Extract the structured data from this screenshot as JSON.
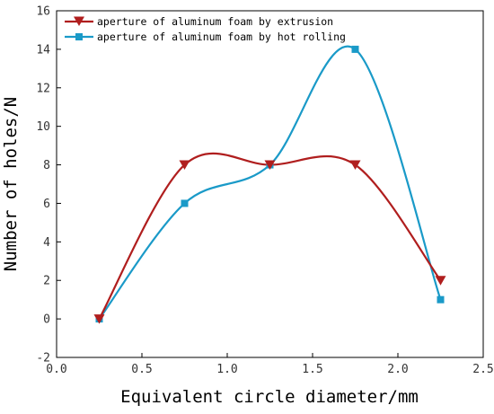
{
  "chart_data": {
    "type": "line",
    "title": "",
    "xlabel": "Equivalent circle diameter/mm",
    "ylabel": "Number of holes/N",
    "xlim": [
      0.0,
      2.5
    ],
    "ylim": [
      -2,
      16
    ],
    "x_ticks": [
      "0.0",
      "0.5",
      "1.0",
      "1.5",
      "2.0",
      "2.5"
    ],
    "y_ticks": [
      "-2",
      "0",
      "2",
      "4",
      "6",
      "8",
      "10",
      "12",
      "14",
      "16"
    ],
    "grid": false,
    "legend_position": "top-left",
    "smooth": true,
    "x": [
      0.25,
      0.75,
      1.25,
      1.75,
      2.25
    ],
    "series": [
      {
        "name": "aperture of aluminum foam by extrusion",
        "values": [
          0,
          8,
          8,
          8,
          2
        ],
        "color": "#b01e1e",
        "marker": "triangle-down"
      },
      {
        "name": "aperture of aluminum foam by hot rolling",
        "values": [
          0,
          6,
          8,
          14,
          1
        ],
        "color": "#1a9ac8",
        "marker": "square"
      }
    ]
  }
}
